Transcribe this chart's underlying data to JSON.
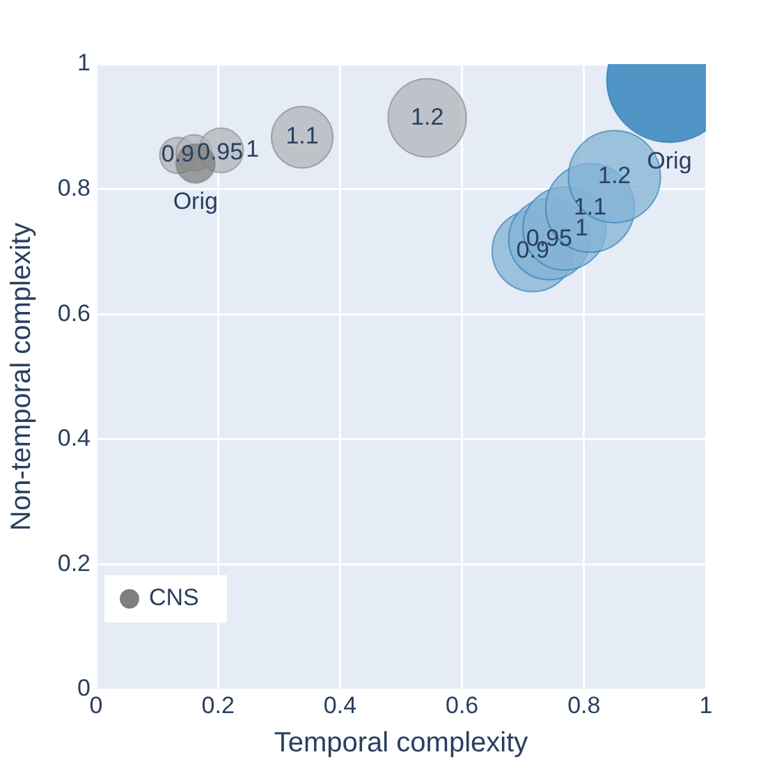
{
  "chart_data": {
    "type": "bubble",
    "xlabel": "Temporal complexity",
    "ylabel": "Non-temporal complexity",
    "xlim": [
      0,
      1
    ],
    "ylim": [
      0,
      1
    ],
    "xticks": [
      0,
      0.2,
      0.4,
      0.6,
      0.8,
      1
    ],
    "yticks": [
      0,
      0.2,
      0.4,
      0.6,
      0.8,
      1
    ],
    "grid": true,
    "legend": "bottom left",
    "series": [
      {
        "name": "CNS",
        "color": "#7f7f7f",
        "x": [
          0.134,
          0.161,
          0.205,
          0.338,
          0.543,
          0.163
        ],
        "values": [
          0.854,
          0.858,
          0.862,
          0.883,
          0.914,
          0.841
        ],
        "sizes": [
          0.083,
          0.083,
          0.126,
          0.24,
          0.39,
          0.097
        ],
        "colors": [
          "#b2b5ba",
          "#b2b5ba",
          "#b2b5ba",
          "#b2b5ba",
          "#b2b5ba",
          "#7f7f7f"
        ]
      },
      {
        "color": "#1f77b4",
        "x": [
          0.716,
          0.743,
          0.768,
          0.81,
          0.85,
          0.94
        ],
        "values": [
          0.701,
          0.72,
          0.737,
          0.77,
          0.82,
          0.975
        ],
        "sizes": [
          0.42,
          0.42,
          0.44,
          0.5,
          0.54,
          1
        ],
        "colors": [
          "#82b2d5",
          "#82b2d5",
          "#82b2d5",
          "#82b2d5",
          "#82b2d5",
          "#1f77b4"
        ]
      }
    ],
    "annotations": [
      {
        "text": "0.9",
        "x": 0.134,
        "y": 0.854
      },
      {
        "text": "0.95",
        "x": 0.161,
        "y": 0.858
      },
      {
        "text": "1",
        "x": 0.205,
        "y": 0.862
      },
      {
        "text": "1.1",
        "x": 0.338,
        "y": 0.883
      },
      {
        "text": "1.2",
        "x": 0.543,
        "y": 0.914
      },
      {
        "text": "Orig",
        "x": 0.163,
        "y": 0.841
      },
      {
        "text": "0.9",
        "x": 0.716,
        "y": 0.701
      },
      {
        "text": "0.95",
        "x": 0.743,
        "y": 0.72
      },
      {
        "text": "1",
        "x": 0.768,
        "y": 0.737
      },
      {
        "text": "1.1",
        "x": 0.81,
        "y": 0.77
      },
      {
        "text": "1.2",
        "x": 0.85,
        "y": 0.82
      },
      {
        "text": "Orig",
        "x": 0.94,
        "y": 0.975
      }
    ]
  }
}
